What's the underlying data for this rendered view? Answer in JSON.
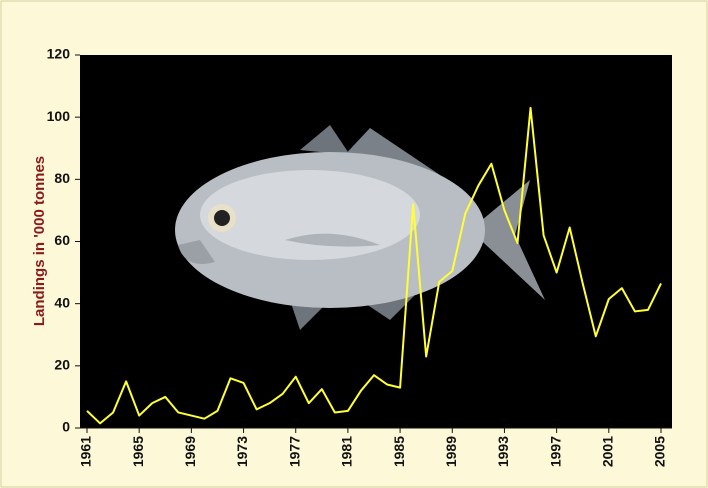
{
  "chart_data": {
    "type": "line",
    "ylabel": "Landings in '000 tonnes",
    "x": [
      1961,
      1962,
      1963,
      1964,
      1965,
      1966,
      1967,
      1968,
      1969,
      1970,
      1971,
      1972,
      1973,
      1974,
      1975,
      1976,
      1977,
      1978,
      1979,
      1980,
      1981,
      1982,
      1983,
      1984,
      1985,
      1986,
      1987,
      1988,
      1989,
      1990,
      1991,
      1992,
      1993,
      1994,
      1995,
      1996,
      1997,
      1998,
      1999,
      2000,
      2001,
      2002,
      2003,
      2004,
      2005
    ],
    "series": [
      {
        "name": "Landings",
        "color": "#ffff33",
        "values": [
          5.5,
          1.5,
          5,
          15,
          4,
          8,
          10,
          5,
          4,
          3,
          5.5,
          16,
          14.5,
          6,
          8,
          11,
          16.5,
          8,
          12.5,
          5,
          5.5,
          12,
          17,
          14,
          13,
          72,
          23,
          47,
          50.5,
          69,
          78,
          85,
          70,
          59.5,
          103,
          62,
          50,
          64.5,
          46.5,
          29.5,
          41.5,
          45,
          37.5,
          38,
          46.5
        ]
      }
    ],
    "xlim": [
      1961,
      2005
    ],
    "xticks": [
      1961,
      1965,
      1969,
      1973,
      1977,
      1981,
      1985,
      1989,
      1993,
      1997,
      2001,
      2005
    ],
    "ylim": [
      0,
      120
    ],
    "yticks": [
      0,
      20,
      40,
      60,
      80,
      100,
      120
    ]
  }
}
